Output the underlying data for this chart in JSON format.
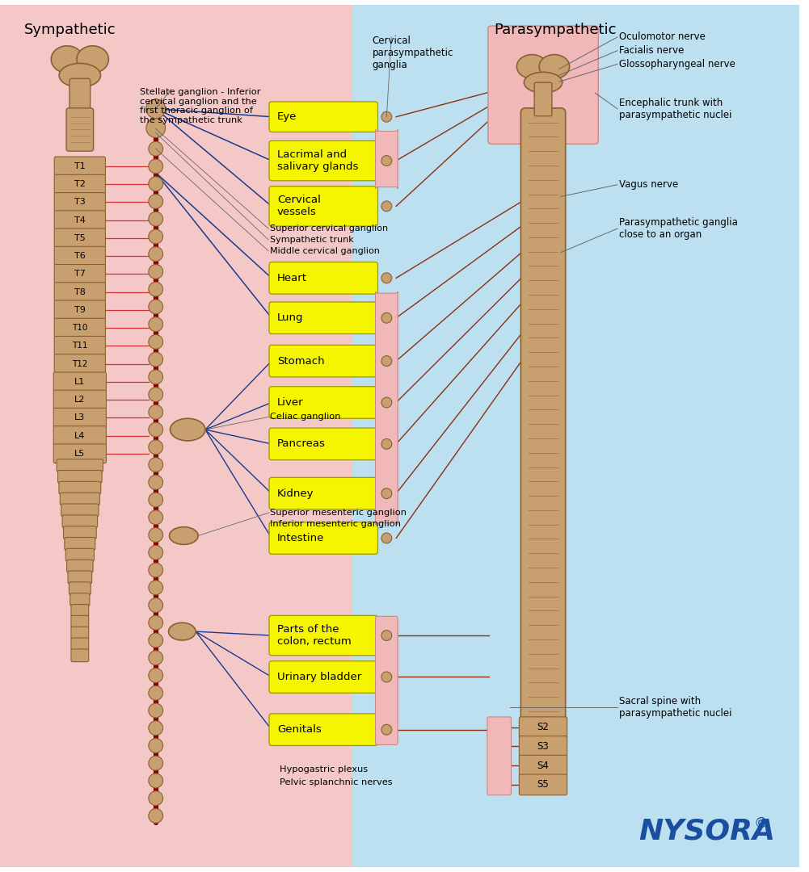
{
  "bg_pink": "#f5c8c8",
  "bg_blue": "#bde0f0",
  "yellow_box": "#f5f500",
  "pink_box": "#f0b8b8",
  "title_sympathetic": "Sympathetic",
  "title_parasympathetic": "Parasympathetic",
  "spine_labels_left": [
    "T1",
    "T2",
    "T3",
    "T4",
    "T5",
    "T6",
    "T7",
    "T8",
    "T9",
    "T10",
    "T11",
    "T12",
    "L1",
    "L2",
    "L3",
    "L4",
    "L5"
  ],
  "spine_labels_right": [
    "S2",
    "S3",
    "S4",
    "S5"
  ],
  "organ_labels": [
    "Eye",
    "Lacrimal and\nsalivary glands",
    "Cervical\nvessels",
    "Heart",
    "Lung",
    "Stomach",
    "Liver",
    "Pancreas",
    "Kidney",
    "Intestine",
    "Parts of the\ncolon, rectum",
    "Urinary bladder",
    "Genitals"
  ],
  "celiac_label": "Celiac ganglion",
  "sup_mes_label": "Superior mesenteric ganglion",
  "inf_mes_label": "Inferior mesenteric ganglion",
  "hypo_label": "Hypogastric plexus",
  "pelvic_label": "Pelvic splanchnic nerves",
  "stellate_label": "Stellate ganglion - Inferior\ncervical ganglion and the\nfirst thoracic ganglion of\nthe sympathetic trunk",
  "cervical_para_label": "Cervical\nparasympathetic\nganglia",
  "oculo_label": "Oculomotor nerve",
  "facialis_label": "Facialis nerve",
  "glosso_label": "Glossopharyngeal nerve",
  "encephalic_label": "Encephalic trunk with\nparasympathetic nuclei",
  "vagus_label": "Vagus nerve",
  "para_ganglia_label": "Parasympathetic ganglia\nclose to an organ",
  "sacral_label": "Sacral spine with\nparasympathetic nuclei",
  "ganglion_labels": [
    "Superior cervical ganglion",
    "Sympathetic trunk",
    "Middle cervical ganglion"
  ],
  "nysora_color": "#1a4fa0",
  "spine_color": "#c8a070",
  "spine_edge": "#8a6030",
  "chain_color": "#8b0000",
  "bead_color": "#c8a070",
  "bead_edge": "#8a6030",
  "line_blue": "#1a3a8f",
  "line_brown": "#8b3010",
  "line_gray": "#666666"
}
